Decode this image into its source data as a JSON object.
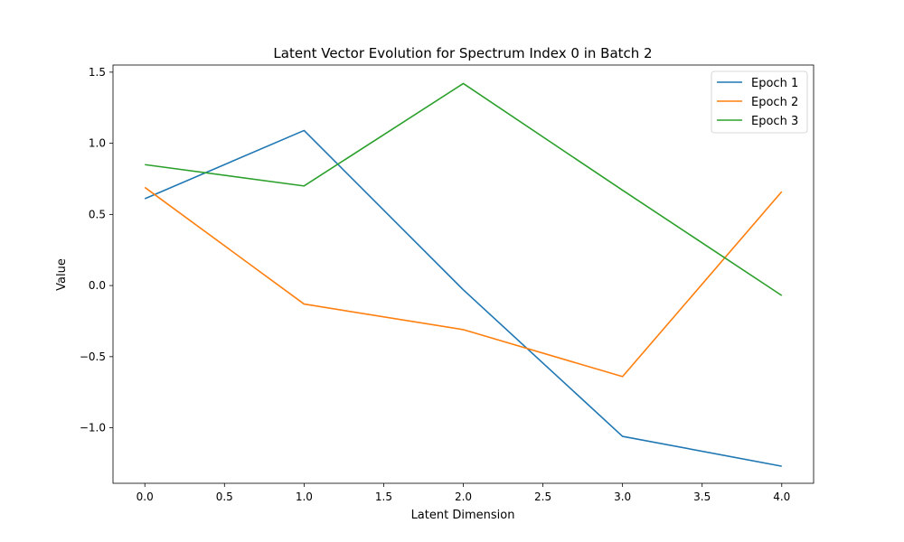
{
  "chart_data": {
    "type": "line",
    "title": "Latent Vector Evolution for Spectrum Index 0 in Batch 2",
    "xlabel": "Latent Dimension",
    "ylabel": "Value",
    "x": [
      0,
      1,
      2,
      3,
      4
    ],
    "xlim": [
      -0.2,
      4.2
    ],
    "ylim": [
      -1.39,
      1.55
    ],
    "xticks": [
      0.0,
      0.5,
      1.0,
      1.5,
      2.0,
      2.5,
      3.0,
      3.5,
      4.0
    ],
    "xtick_labels": [
      "0.0",
      "0.5",
      "1.0",
      "1.5",
      "2.0",
      "2.5",
      "3.0",
      "3.5",
      "4.0"
    ],
    "yticks": [
      -1.0,
      -0.5,
      0.0,
      0.5,
      1.0,
      1.5
    ],
    "ytick_labels": [
      "−1.0",
      "−0.5",
      "0.0",
      "0.5",
      "1.0",
      "1.5"
    ],
    "grid": false,
    "legend_position": "top-right",
    "series": [
      {
        "name": "Epoch 1",
        "color": "#1f77b4",
        "values": [
          0.61,
          1.09,
          -0.03,
          -1.06,
          -1.27
        ]
      },
      {
        "name": "Epoch 2",
        "color": "#ff7f0e",
        "values": [
          0.69,
          -0.13,
          -0.31,
          -0.64,
          0.66
        ]
      },
      {
        "name": "Epoch 3",
        "color": "#2ca02c",
        "values": [
          0.85,
          0.7,
          1.42,
          0.67,
          -0.07
        ]
      }
    ]
  }
}
